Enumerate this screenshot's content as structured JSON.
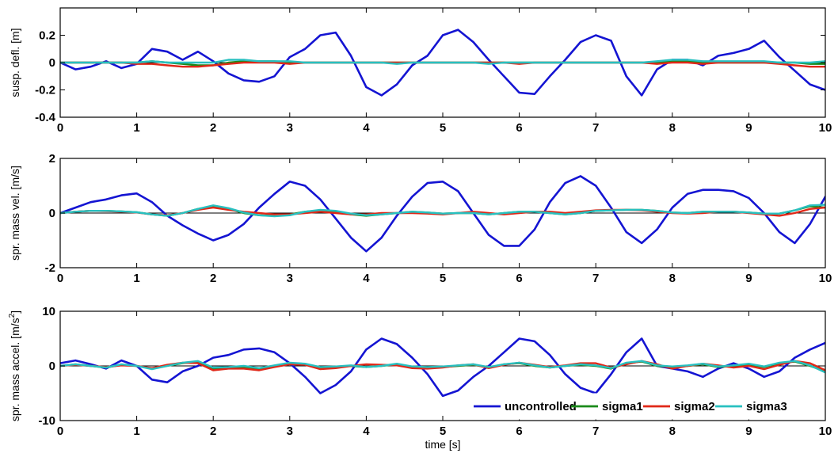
{
  "colors": {
    "uncontrolled": "#1414d2",
    "sigma1": "#1a8a1a",
    "sigma2": "#e02818",
    "sigma3": "#28c0c0"
  },
  "legend": [
    "uncontrolled",
    "sigma1",
    "sigma2",
    "sigma3"
  ],
  "chart_data": [
    {
      "type": "line",
      "ylabel": "susp. defl. [m]",
      "xlabel": "",
      "xlim": [
        0,
        10
      ],
      "ylim": [
        -0.4,
        0.4
      ],
      "x_ticks": [
        "0",
        "1",
        "2",
        "3",
        "4",
        "5",
        "6",
        "7",
        "8",
        "9",
        "10"
      ],
      "y_ticks": [
        "-0.4",
        "-0.2",
        "0",
        "0.2"
      ],
      "x": [
        0,
        0.2,
        0.4,
        0.6,
        0.8,
        1,
        1.2,
        1.4,
        1.6,
        1.8,
        2,
        2.2,
        2.4,
        2.6,
        2.8,
        3,
        3.2,
        3.4,
        3.6,
        3.8,
        4,
        4.2,
        4.4,
        4.6,
        4.8,
        5,
        5.2,
        5.4,
        5.6,
        5.8,
        6,
        6.2,
        6.4,
        6.6,
        6.8,
        7,
        7.2,
        7.4,
        7.6,
        7.8,
        8,
        8.2,
        8.4,
        8.6,
        8.8,
        9,
        9.2,
        9.4,
        9.6,
        9.8,
        10
      ],
      "series": [
        {
          "name": "uncontrolled",
          "values": [
            0,
            -0.05,
            -0.03,
            0.01,
            -0.04,
            -0.01,
            0.1,
            0.08,
            0.02,
            0.08,
            0.01,
            -0.08,
            -0.13,
            -0.14,
            -0.1,
            0.04,
            0.1,
            0.2,
            0.22,
            0.05,
            -0.18,
            -0.24,
            -0.16,
            -0.02,
            0.05,
            0.2,
            0.24,
            0.15,
            0.02,
            -0.1,
            -0.22,
            -0.23,
            -0.1,
            0.02,
            0.15,
            0.2,
            0.16,
            -0.1,
            -0.24,
            -0.05,
            0.02,
            0.02,
            -0.02,
            0.05,
            0.07,
            0.1,
            0.16,
            0.04,
            -0.06,
            -0.16,
            -0.2
          ]
        },
        {
          "name": "sigma1",
          "values": [
            0,
            0,
            0,
            0,
            0,
            0,
            0.01,
            0,
            -0.01,
            -0.02,
            -0.02,
            0,
            0.01,
            0.01,
            0.01,
            0,
            0,
            0,
            0,
            0,
            0,
            0,
            0,
            0,
            0,
            0,
            0,
            0,
            0,
            0,
            0,
            0,
            0,
            0,
            0,
            0,
            0,
            0,
            0,
            0,
            0.01,
            0.01,
            0,
            0,
            0,
            0,
            0,
            0,
            0,
            -0.01,
            -0.01
          ]
        },
        {
          "name": "sigma2",
          "values": [
            0,
            0,
            0,
            0,
            0,
            -0.01,
            -0.01,
            -0.02,
            -0.03,
            -0.03,
            -0.02,
            -0.01,
            0,
            0,
            0,
            -0.01,
            0,
            0,
            0,
            0,
            0,
            0,
            0,
            0,
            0,
            0,
            0,
            0,
            0,
            0,
            -0.01,
            0,
            0,
            0,
            0,
            0,
            0,
            0,
            0,
            -0.01,
            0,
            0,
            -0.01,
            0,
            0,
            0,
            0,
            -0.01,
            -0.02,
            -0.03,
            -0.03
          ]
        },
        {
          "name": "sigma3",
          "values": [
            0,
            0,
            0,
            0,
            0,
            0,
            0.01,
            0,
            0,
            0,
            0,
            0.02,
            0.02,
            0.01,
            0.01,
            0.01,
            0,
            0,
            0,
            0,
            0,
            0,
            -0.01,
            0,
            0,
            0,
            0,
            0,
            -0.01,
            0,
            0,
            0,
            0,
            0,
            0,
            0,
            0,
            0,
            0,
            0.01,
            0.02,
            0.02,
            0.01,
            0.01,
            0.01,
            0.01,
            0.01,
            0,
            0,
            0,
            0.01
          ]
        }
      ]
    },
    {
      "type": "line",
      "ylabel": "spr. mass vel. [m/s]",
      "xlabel": "",
      "xlim": [
        0,
        10
      ],
      "ylim": [
        -2,
        2
      ],
      "x_ticks": [
        "0",
        "1",
        "2",
        "3",
        "4",
        "5",
        "6",
        "7",
        "8",
        "9",
        "10"
      ],
      "y_ticks": [
        "-2",
        "0",
        "2"
      ],
      "x": [
        0,
        0.2,
        0.4,
        0.6,
        0.8,
        1,
        1.2,
        1.4,
        1.6,
        1.8,
        2,
        2.2,
        2.4,
        2.6,
        2.8,
        3,
        3.2,
        3.4,
        3.6,
        3.8,
        4,
        4.2,
        4.4,
        4.6,
        4.8,
        5,
        5.2,
        5.4,
        5.6,
        5.8,
        6,
        6.2,
        6.4,
        6.6,
        6.8,
        7,
        7.2,
        7.4,
        7.6,
        7.8,
        8,
        8.2,
        8.4,
        8.6,
        8.8,
        9,
        9.2,
        9.4,
        9.6,
        9.8,
        10
      ],
      "series": [
        {
          "name": "uncontrolled",
          "values": [
            0,
            0.2,
            0.4,
            0.5,
            0.65,
            0.72,
            0.4,
            -0.1,
            -0.45,
            -0.75,
            -1,
            -0.8,
            -0.4,
            0.2,
            0.7,
            1.15,
            1,
            0.5,
            -0.2,
            -0.9,
            -1.4,
            -0.9,
            -0.1,
            0.6,
            1.1,
            1.15,
            0.8,
            0,
            -0.8,
            -1.2,
            -1.2,
            -0.6,
            0.4,
            1.1,
            1.35,
            1,
            0.2,
            -0.7,
            -1.1,
            -0.6,
            0.2,
            0.7,
            0.85,
            0.85,
            0.8,
            0.55,
            0,
            -0.7,
            -1.1,
            -0.4,
            0.6
          ]
        },
        {
          "name": "sigma1",
          "values": [
            0,
            0.05,
            0.08,
            0.08,
            0.06,
            0.03,
            -0.05,
            -0.1,
            0,
            0.15,
            0.25,
            0.15,
            0,
            -0.08,
            -0.1,
            -0.05,
            0.05,
            0.1,
            0.05,
            -0.05,
            -0.1,
            -0.05,
            0,
            0.05,
            0.02,
            -0.02,
            0,
            0,
            -0.05,
            0,
            0.05,
            0.05,
            0,
            -0.05,
            0,
            0.08,
            0.1,
            0.12,
            0.12,
            0.08,
            0.02,
            0,
            0.05,
            0.05,
            0.05,
            0.02,
            -0.02,
            -0.02,
            0.1,
            0.25,
            0.2
          ]
        },
        {
          "name": "sigma2",
          "values": [
            0,
            0.05,
            0.08,
            0.07,
            0.05,
            0.02,
            -0.05,
            -0.08,
            0,
            0.12,
            0.2,
            0.12,
            0.05,
            0,
            -0.05,
            -0.05,
            0,
            0.05,
            0,
            -0.05,
            -0.05,
            0,
            0,
            0,
            -0.02,
            -0.05,
            0,
            0.05,
            0,
            -0.05,
            0,
            0.05,
            0.05,
            0,
            0.05,
            0.1,
            0.12,
            0.12,
            0.1,
            0.05,
            0,
            -0.02,
            0,
            0.05,
            0.05,
            0,
            -0.05,
            -0.1,
            0,
            0.15,
            0.2
          ]
        },
        {
          "name": "sigma3",
          "values": [
            0,
            0.05,
            0.08,
            0.08,
            0.06,
            0.03,
            -0.05,
            -0.1,
            0,
            0.15,
            0.28,
            0.18,
            0.02,
            -0.08,
            -0.12,
            -0.08,
            0.05,
            0.12,
            0.08,
            -0.02,
            -0.08,
            -0.05,
            0,
            0.05,
            0.02,
            -0.02,
            0,
            0,
            -0.05,
            0,
            0.05,
            0.05,
            0,
            -0.05,
            0,
            0.08,
            0.1,
            0.12,
            0.12,
            0.08,
            0.02,
            0,
            0.05,
            0.05,
            0.05,
            0.02,
            -0.02,
            -0.02,
            0.1,
            0.28,
            0.3
          ]
        }
      ]
    },
    {
      "type": "line",
      "ylabel": "spr. mass accel. [m/s2]",
      "ylabel_main": "spr. mass accel. [m/s",
      "ylabel_sup": "2",
      "ylabel_close": "]",
      "xlabel": "time [s]",
      "xlim": [
        0,
        10
      ],
      "ylim": [
        -10,
        10
      ],
      "x_ticks": [
        "0",
        "1",
        "2",
        "3",
        "4",
        "5",
        "6",
        "7",
        "8",
        "9",
        "10"
      ],
      "y_ticks": [
        "-10",
        "0",
        "10"
      ],
      "x": [
        0,
        0.2,
        0.4,
        0.6,
        0.8,
        1,
        1.2,
        1.4,
        1.6,
        1.8,
        2,
        2.2,
        2.4,
        2.6,
        2.8,
        3,
        3.2,
        3.4,
        3.6,
        3.8,
        4,
        4.2,
        4.4,
        4.6,
        4.8,
        5,
        5.2,
        5.4,
        5.6,
        5.8,
        6,
        6.2,
        6.4,
        6.6,
        6.8,
        7,
        7.2,
        7.4,
        7.6,
        7.8,
        8,
        8.2,
        8.4,
        8.6,
        8.8,
        9,
        9.2,
        9.4,
        9.6,
        9.8,
        10
      ],
      "series": [
        {
          "name": "uncontrolled",
          "values": [
            0.5,
            1,
            0.3,
            -0.5,
            1,
            0,
            -2.5,
            -3,
            -1,
            0,
            1.5,
            2,
            3,
            3.2,
            2.5,
            0.5,
            -2,
            -5,
            -3.5,
            -1,
            3,
            5,
            4,
            1.5,
            -1.5,
            -5.5,
            -4.5,
            -2,
            0,
            2.5,
            5,
            4.5,
            2,
            -1.5,
            -4,
            -5,
            -1.5,
            2.5,
            5,
            0,
            -0.5,
            -1,
            -2,
            -0.5,
            0.5,
            -0.5,
            -2,
            -1,
            1.5,
            3,
            4.2
          ]
        },
        {
          "name": "sigma1",
          "values": [
            0,
            0.3,
            0,
            -0.3,
            0.2,
            0,
            -0.5,
            0,
            0.5,
            0.8,
            -0.5,
            -0.3,
            -0.2,
            -0.5,
            0,
            0.5,
            0.3,
            -0.3,
            -0.2,
            0,
            -0.2,
            0,
            0.3,
            -0.2,
            -0.3,
            -0.2,
            0,
            0.2,
            -0.3,
            0.3,
            0.5,
            0,
            -0.3,
            0,
            0.2,
            0,
            -0.5,
            0.5,
            0.8,
            0,
            -0.2,
            0,
            0.3,
            -0.2,
            0,
            0.3,
            -0.2,
            0.5,
            0.8,
            0,
            -1
          ]
        },
        {
          "name": "sigma2",
          "values": [
            0,
            0.2,
            0,
            -0.2,
            0.1,
            0,
            -0.4,
            0.2,
            0.6,
            0.5,
            -0.8,
            -0.5,
            -0.5,
            -0.8,
            -0.2,
            0.3,
            0.2,
            -0.6,
            -0.4,
            0,
            0.3,
            0.2,
            0.1,
            -0.4,
            -0.5,
            -0.3,
            0.1,
            0.3,
            -0.4,
            0.2,
            0.6,
            0.2,
            -0.2,
            0.1,
            0.5,
            0.5,
            -0.3,
            0.3,
            0.9,
            0.3,
            -0.5,
            0,
            0.4,
            0.1,
            -0.3,
            0,
            -0.6,
            0.2,
            0.9,
            0.5,
            -0.8
          ]
        },
        {
          "name": "sigma3",
          "values": [
            0,
            0.3,
            0,
            -0.3,
            0.3,
            0,
            -0.6,
            0,
            0.6,
            0.9,
            -0.3,
            -0.2,
            0,
            -0.4,
            0.1,
            0.6,
            0.4,
            -0.2,
            -0.1,
            0.1,
            -0.2,
            0,
            0.4,
            -0.1,
            -0.2,
            -0.1,
            0.1,
            0.3,
            -0.2,
            0.3,
            0.6,
            0.1,
            -0.3,
            0,
            0.3,
            0.1,
            -0.4,
            0.6,
            0.9,
            0.1,
            -0.1,
            0.1,
            0.4,
            -0.1,
            0.1,
            0.4,
            -0.1,
            0.6,
            0.9,
            0.1,
            -1.2
          ]
        }
      ]
    }
  ]
}
